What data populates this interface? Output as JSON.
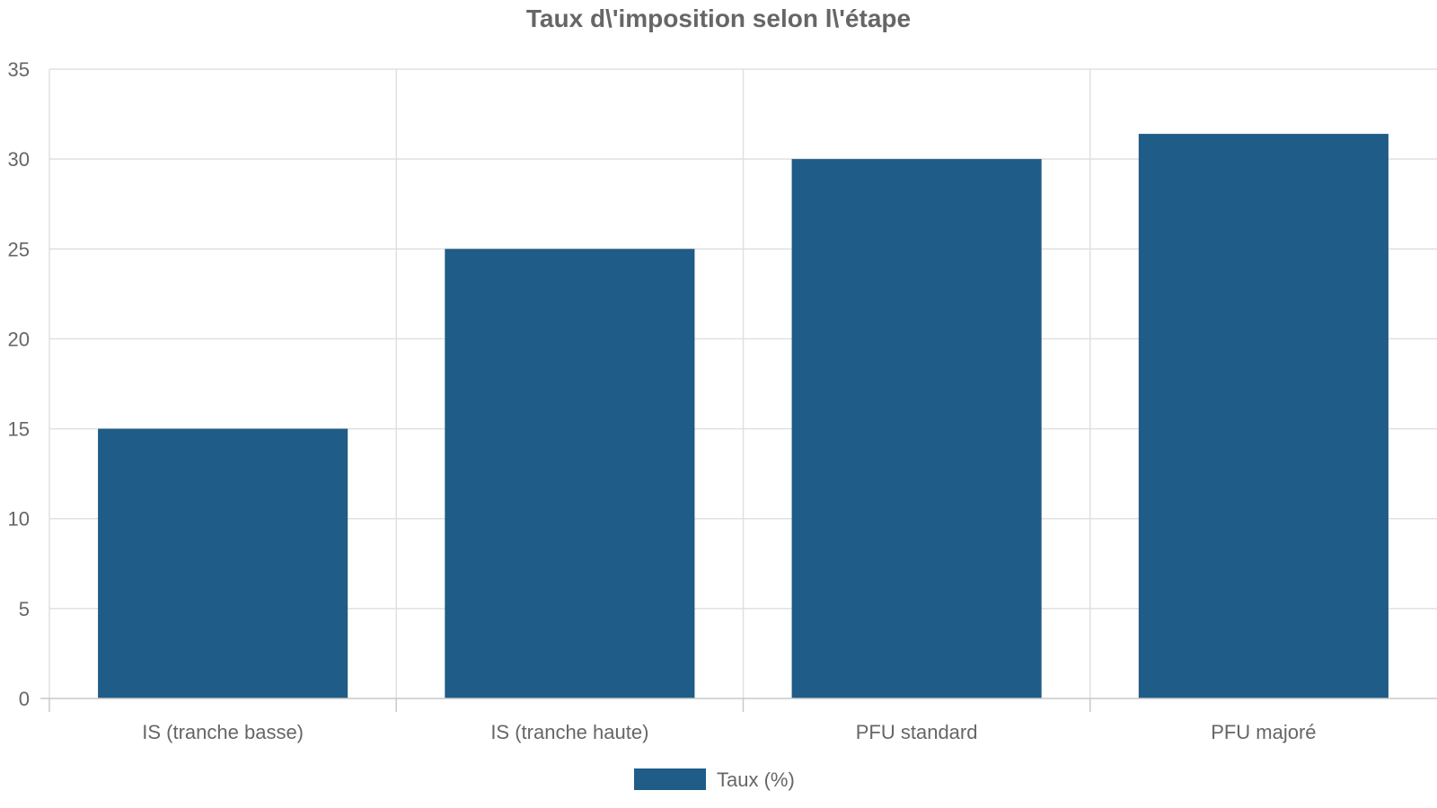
{
  "chart_data": {
    "type": "bar",
    "title": "Taux d\\'imposition selon l\\'étape",
    "xlabel": "",
    "ylabel": "",
    "categories": [
      "IS (tranche basse)",
      "IS (tranche haute)",
      "PFU standard",
      "PFU majoré"
    ],
    "series": [
      {
        "name": "Taux (%)",
        "values": [
          15,
          25,
          30,
          31.4
        ],
        "color": "#1f5c87"
      }
    ],
    "ylim": [
      0,
      35
    ],
    "yticks": [
      0,
      5,
      10,
      15,
      20,
      25,
      30,
      35
    ],
    "grid": true,
    "legend_position": "bottom"
  }
}
